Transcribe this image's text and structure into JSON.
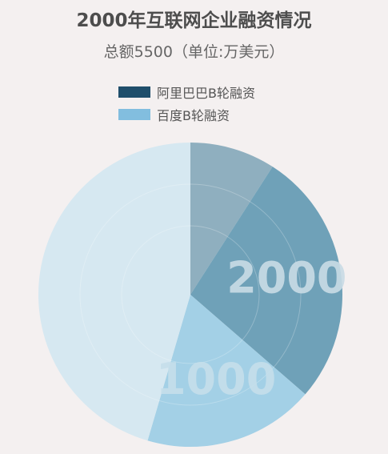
{
  "chart_data": {
    "type": "pie",
    "title": "2000年互联网企业融资情况",
    "subtitle": "总额5500（单位:万美元）",
    "legend": [
      {
        "name": "阿里巴巴B轮融资",
        "color": "#1f4e6b"
      },
      {
        "name": "百度B轮融资",
        "color": "#82bedf"
      }
    ],
    "legend_position": "top-center",
    "slices": [
      {
        "value": 500,
        "color": "#8fafbf"
      },
      {
        "value": 1500,
        "color": "#6fa1b8"
      },
      {
        "value": 1000,
        "color": "#a3d0e6"
      },
      {
        "value": 2500,
        "color": "#d6e8f1"
      }
    ],
    "data_labels": [
      {
        "text": "2000",
        "color": "#c9dce6"
      },
      {
        "text": "1000",
        "color": "#c6dfeb"
      }
    ]
  }
}
